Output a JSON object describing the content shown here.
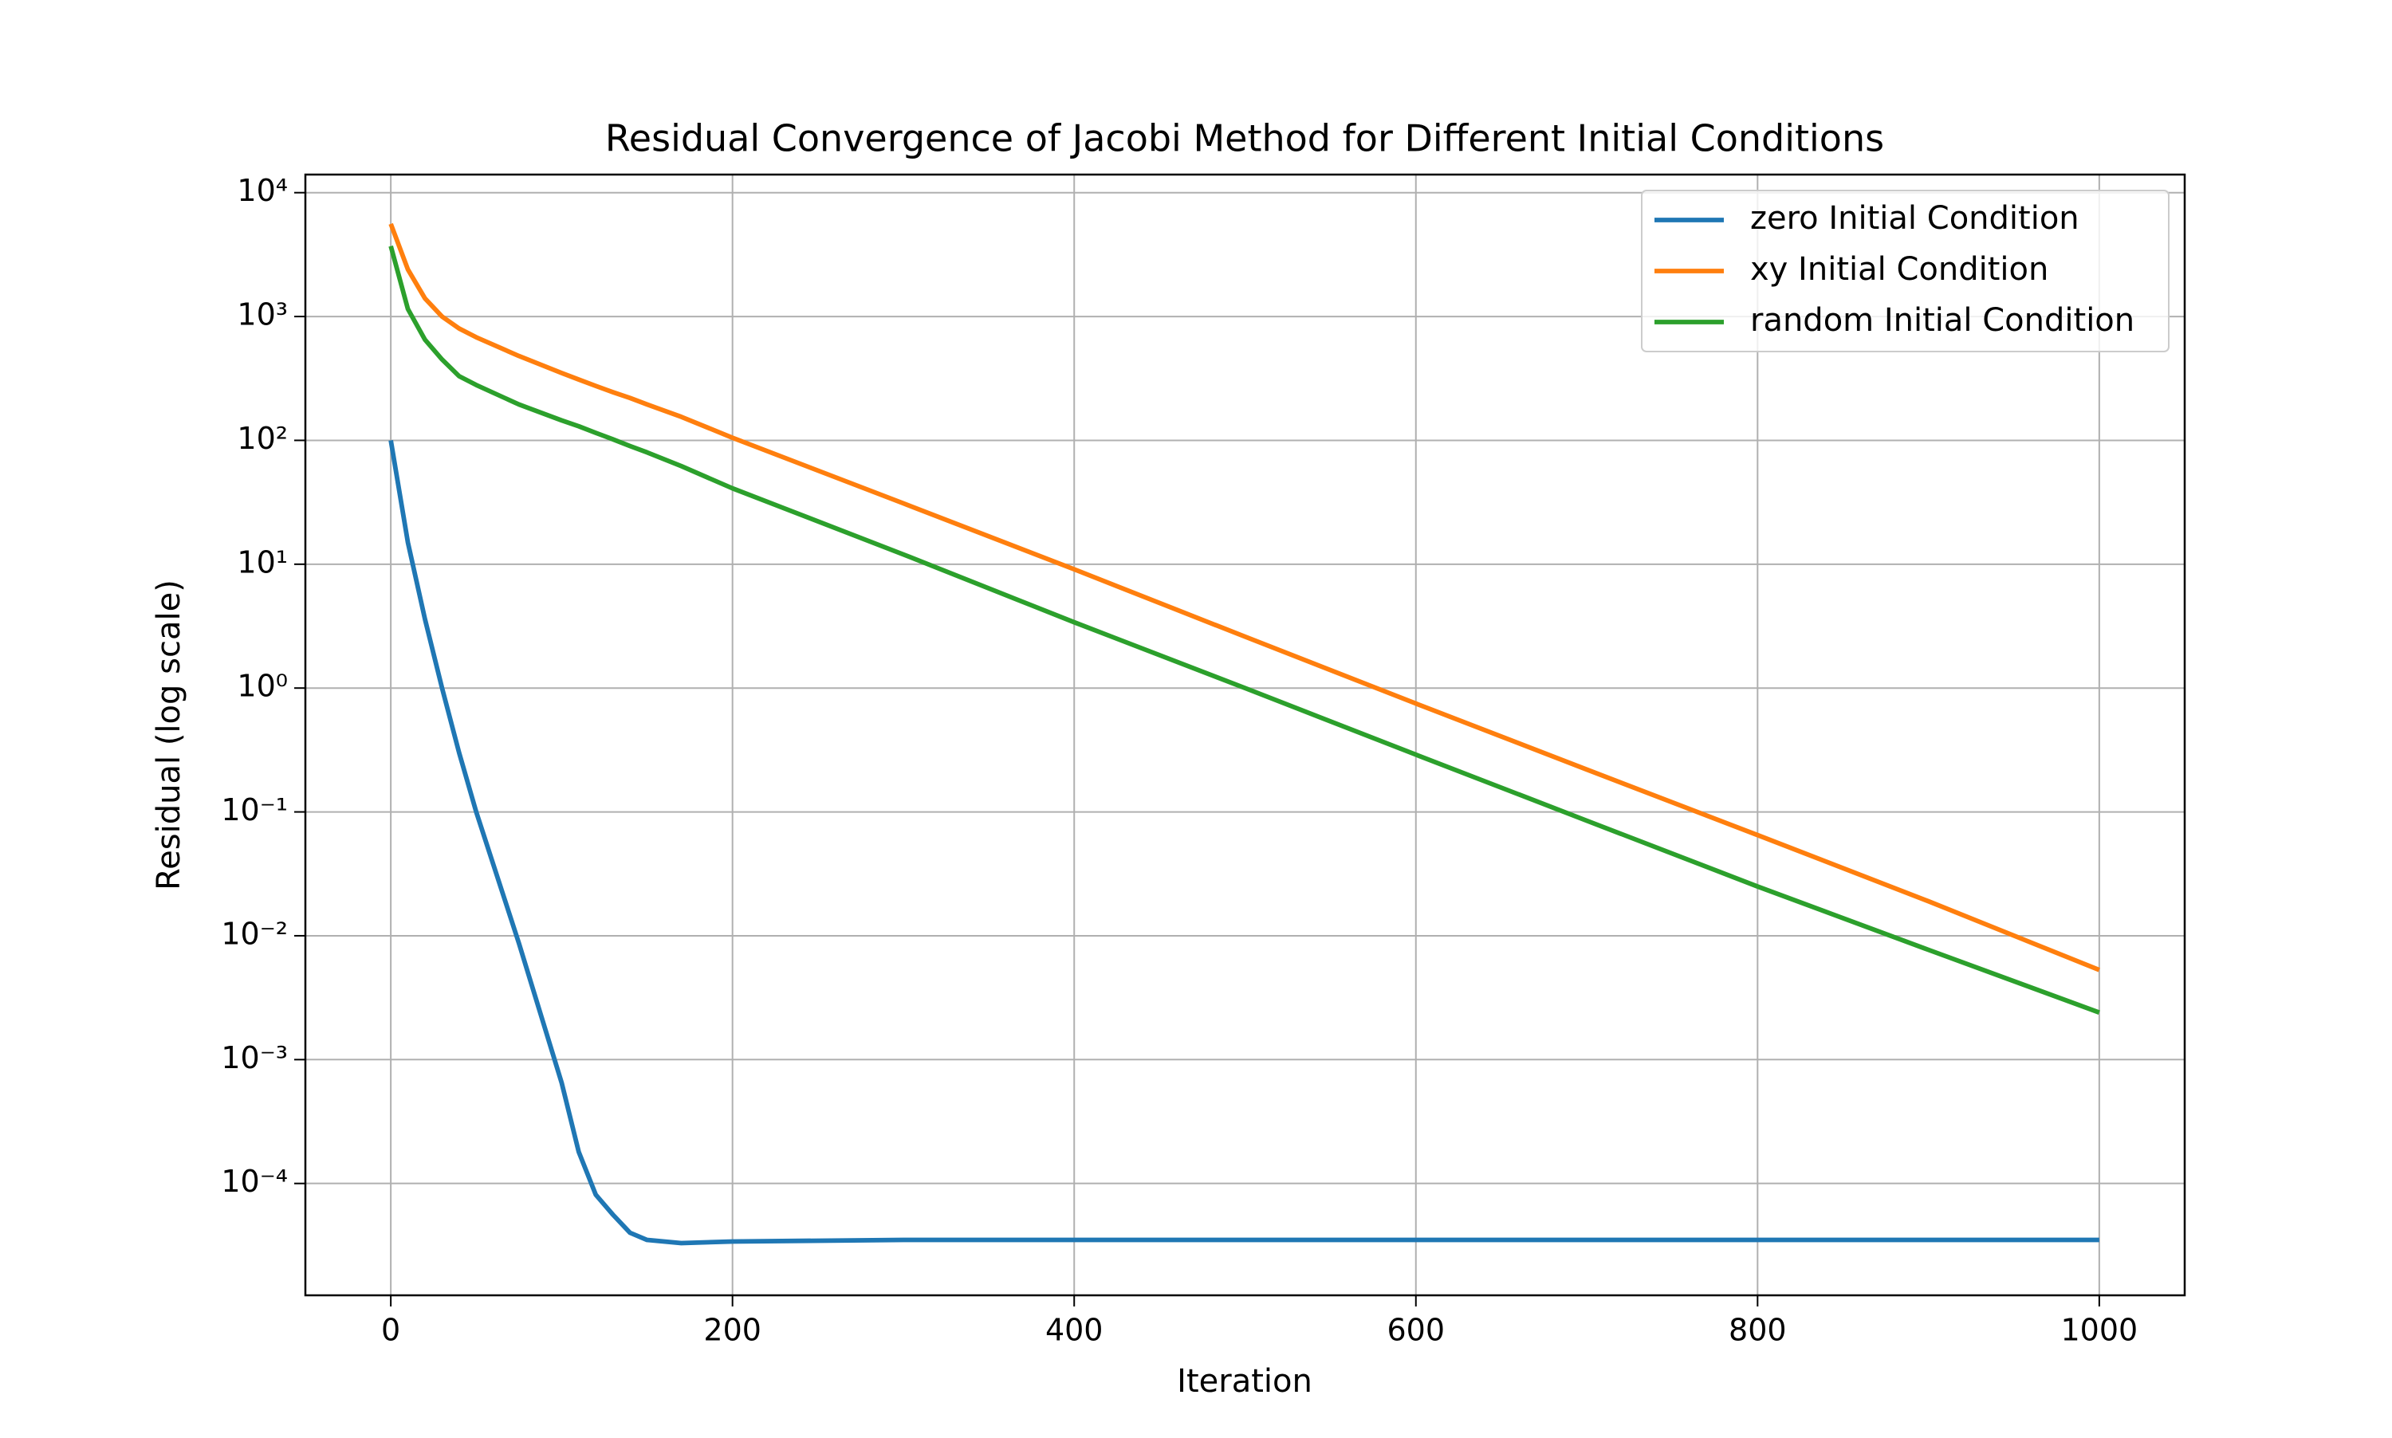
{
  "chart_data": {
    "type": "line",
    "title": "Residual Convergence of Jacobi Method for Different Initial Conditions",
    "x_label": "Iteration",
    "y_label": "Residual (log scale)",
    "log_y": true,
    "grid": true,
    "legend": "upper right",
    "xlim": [
      -50,
      1050
    ],
    "xticks": [
      0,
      200,
      400,
      600,
      800,
      1000
    ],
    "ylim": [
      1.25e-05,
      14000
    ],
    "yticks": [
      {
        "value": 0.0001,
        "label": "10⁻⁴"
      },
      {
        "value": 0.001,
        "label": "10⁻³"
      },
      {
        "value": 0.01,
        "label": "10⁻²"
      },
      {
        "value": 0.1,
        "label": "10⁻¹"
      },
      {
        "value": 1,
        "label": "10⁰"
      },
      {
        "value": 10,
        "label": "10¹"
      },
      {
        "value": 100,
        "label": "10²"
      },
      {
        "value": 1000,
        "label": "10³"
      },
      {
        "value": 10000,
        "label": "10⁴"
      }
    ],
    "x": [
      0,
      10,
      20,
      30,
      40,
      50,
      75,
      100,
      110,
      120,
      130,
      140,
      150,
      170,
      200,
      300,
      400,
      500,
      600,
      700,
      800,
      900,
      1000
    ],
    "series": [
      {
        "name": "zero Initial Condition",
        "color": "#1f77b4",
        "values": [
          100,
          15,
          3.6,
          1,
          0.3,
          0.1,
          0.0087,
          0.00065,
          0.00018,
          8.1e-05,
          5.6e-05,
          4e-05,
          3.5e-05,
          3.3e-05,
          3.4e-05,
          3.5e-05,
          3.5e-05,
          3.5e-05,
          3.5e-05,
          3.5e-05,
          3.5e-05,
          3.5e-05,
          3.5e-05
        ]
      },
      {
        "name": "xy Initial Condition",
        "color": "#ff7f0e",
        "values": [
          5600,
          2400,
          1400,
          1000,
          800,
          680,
          480,
          350,
          310,
          275,
          245,
          220,
          195,
          155,
          105,
          31,
          9.1,
          2.6,
          0.75,
          0.22,
          0.065,
          0.019,
          0.0053
        ]
      },
      {
        "name": "random Initial Condition",
        "color": "#2ca02c",
        "values": [
          3700,
          1150,
          650,
          450,
          330,
          280,
          195,
          145,
          130,
          115,
          102,
          90,
          80,
          62,
          41,
          12,
          3.4,
          1.0,
          0.29,
          0.085,
          0.025,
          0.0077,
          0.0024
        ]
      }
    ]
  }
}
